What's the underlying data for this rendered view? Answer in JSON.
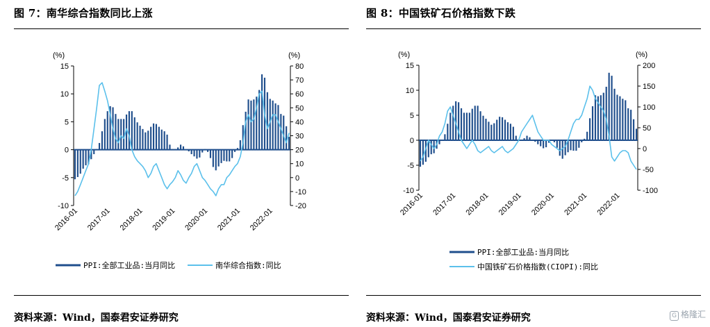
{
  "left": {
    "title": "图 7：南华综合指数同比上涨",
    "source": "资料来源：Wind，国泰君安证券研究",
    "chart_data": {
      "type": "bar+line",
      "left_unit": "(%)",
      "right_unit": "(%)",
      "left_ylim": [
        -10,
        15
      ],
      "left_ticks": [
        "15",
        "10",
        "5",
        "0",
        "-5",
        "-10"
      ],
      "right_ylim": [
        -20,
        80
      ],
      "right_ticks": [
        "80",
        "70",
        "60",
        "50",
        "40",
        "30",
        "20",
        "10",
        "0",
        "-10",
        "-20"
      ],
      "x_tick_labels": [
        "2016-01",
        "2017-01",
        "2018-01",
        "2019-01",
        "2020-01",
        "2021-01",
        "2022-01"
      ],
      "x_range": [
        "2016-01",
        "2022-08"
      ],
      "series": [
        {
          "name": "PPI:全部工业品:当月同比",
          "type": "bar",
          "axis": "left",
          "color": "#1f4e8c",
          "x": [
            "2016-01",
            "2016-02",
            "2016-03",
            "2016-04",
            "2016-05",
            "2016-06",
            "2016-07",
            "2016-08",
            "2016-09",
            "2016-10",
            "2016-11",
            "2016-12",
            "2017-01",
            "2017-02",
            "2017-03",
            "2017-04",
            "2017-05",
            "2017-06",
            "2017-07",
            "2017-08",
            "2017-09",
            "2017-10",
            "2017-11",
            "2017-12",
            "2018-01",
            "2018-02",
            "2018-03",
            "2018-04",
            "2018-05",
            "2018-06",
            "2018-07",
            "2018-08",
            "2018-09",
            "2018-10",
            "2018-11",
            "2018-12",
            "2019-01",
            "2019-02",
            "2019-03",
            "2019-04",
            "2019-05",
            "2019-06",
            "2019-07",
            "2019-08",
            "2019-09",
            "2019-10",
            "2019-11",
            "2019-12",
            "2020-01",
            "2020-02",
            "2020-03",
            "2020-04",
            "2020-05",
            "2020-06",
            "2020-07",
            "2020-08",
            "2020-09",
            "2020-10",
            "2020-11",
            "2020-12",
            "2021-01",
            "2021-02",
            "2021-03",
            "2021-04",
            "2021-05",
            "2021-06",
            "2021-07",
            "2021-08",
            "2021-09",
            "2021-10",
            "2021-11",
            "2021-12",
            "2022-01",
            "2022-02",
            "2022-03",
            "2022-04",
            "2022-05",
            "2022-06",
            "2022-07",
            "2022-08"
          ],
          "values": [
            -5.3,
            -4.9,
            -4.3,
            -3.4,
            -2.8,
            -2.6,
            -1.7,
            -0.8,
            0.1,
            1.2,
            3.3,
            5.5,
            6.9,
            7.8,
            7.6,
            6.4,
            5.5,
            5.5,
            5.5,
            6.3,
            6.9,
            6.9,
            5.8,
            4.9,
            4.3,
            3.7,
            3.1,
            3.4,
            4.1,
            4.7,
            4.6,
            4.1,
            3.6,
            3.3,
            2.7,
            0.9,
            0.1,
            0.1,
            0.4,
            0.9,
            0.6,
            0.0,
            -0.3,
            -0.8,
            -1.2,
            -1.6,
            -1.4,
            -0.5,
            0.1,
            -0.4,
            -1.5,
            -3.1,
            -3.7,
            -3.0,
            -2.4,
            -2.0,
            -2.1,
            -2.1,
            -1.5,
            -0.4,
            0.3,
            1.7,
            4.4,
            6.8,
            9.0,
            8.8,
            9.0,
            9.5,
            10.7,
            13.5,
            12.9,
            10.3,
            9.1,
            8.8,
            8.3,
            8.0,
            6.4,
            6.1,
            4.2,
            2.3
          ]
        },
        {
          "name": "南华综合指数:同比",
          "type": "line",
          "axis": "right",
          "color": "#5bc0eb",
          "x": [
            "2016-01",
            "2016-02",
            "2016-03",
            "2016-04",
            "2016-05",
            "2016-06",
            "2016-07",
            "2016-08",
            "2016-09",
            "2016-10",
            "2016-11",
            "2016-12",
            "2017-01",
            "2017-02",
            "2017-03",
            "2017-04",
            "2017-05",
            "2017-06",
            "2017-07",
            "2017-08",
            "2017-09",
            "2017-10",
            "2017-11",
            "2017-12",
            "2018-01",
            "2018-02",
            "2018-03",
            "2018-04",
            "2018-05",
            "2018-06",
            "2018-07",
            "2018-08",
            "2018-09",
            "2018-10",
            "2018-11",
            "2018-12",
            "2019-01",
            "2019-02",
            "2019-03",
            "2019-04",
            "2019-05",
            "2019-06",
            "2019-07",
            "2019-08",
            "2019-09",
            "2019-10",
            "2019-11",
            "2019-12",
            "2020-01",
            "2020-02",
            "2020-03",
            "2020-04",
            "2020-05",
            "2020-06",
            "2020-07",
            "2020-08",
            "2020-09",
            "2020-10",
            "2020-11",
            "2020-12",
            "2021-01",
            "2021-02",
            "2021-03",
            "2021-04",
            "2021-05",
            "2021-06",
            "2021-07",
            "2021-08",
            "2021-09",
            "2021-10",
            "2021-11",
            "2021-12",
            "2022-01",
            "2022-02",
            "2022-03",
            "2022-04",
            "2022-05",
            "2022-06",
            "2022-07",
            "2022-08"
          ],
          "values": [
            -13,
            -10,
            -5,
            0,
            5,
            10,
            20,
            35,
            50,
            66,
            68,
            62,
            55,
            45,
            35,
            28,
            25,
            30,
            28,
            35,
            30,
            20,
            15,
            12,
            10,
            8,
            5,
            0,
            3,
            8,
            10,
            5,
            0,
            -5,
            -8,
            -5,
            -3,
            0,
            5,
            2,
            -2,
            -4,
            0,
            3,
            8,
            10,
            5,
            0,
            -2,
            -5,
            -8,
            -10,
            -13,
            -8,
            -5,
            -5,
            0,
            2,
            5,
            8,
            10,
            15,
            25,
            40,
            45,
            40,
            42,
            50,
            60,
            62,
            45,
            35,
            40,
            45,
            45,
            40,
            35,
            30,
            25,
            32
          ]
        }
      ]
    }
  },
  "right": {
    "title": "图 8：中国铁矿石价格指数下跌",
    "source": "资料来源：Wind，国泰君安证券研究",
    "chart_data": {
      "type": "bar+line",
      "left_unit": "(%)",
      "right_unit": "(%)",
      "left_ylim": [
        -10,
        15
      ],
      "left_ticks": [
        "15",
        "10",
        "5",
        "0",
        "-5",
        "-10"
      ],
      "right_ylim": [
        -100,
        200
      ],
      "right_ticks": [
        "200",
        "150",
        "100",
        "50",
        "0",
        "-50",
        "-100"
      ],
      "x_tick_labels": [
        "2016-01",
        "2017-01",
        "2018-01",
        "2019-01",
        "2020-01",
        "2021-01",
        "2022-01"
      ],
      "x_range": [
        "2016-01",
        "2022-08"
      ],
      "series": [
        {
          "name": "PPI:全部工业品:当月同比",
          "type": "bar",
          "axis": "left",
          "color": "#1f4e8c",
          "x": [
            "2016-01",
            "2016-02",
            "2016-03",
            "2016-04",
            "2016-05",
            "2016-06",
            "2016-07",
            "2016-08",
            "2016-09",
            "2016-10",
            "2016-11",
            "2016-12",
            "2017-01",
            "2017-02",
            "2017-03",
            "2017-04",
            "2017-05",
            "2017-06",
            "2017-07",
            "2017-08",
            "2017-09",
            "2017-10",
            "2017-11",
            "2017-12",
            "2018-01",
            "2018-02",
            "2018-03",
            "2018-04",
            "2018-05",
            "2018-06",
            "2018-07",
            "2018-08",
            "2018-09",
            "2018-10",
            "2018-11",
            "2018-12",
            "2019-01",
            "2019-02",
            "2019-03",
            "2019-04",
            "2019-05",
            "2019-06",
            "2019-07",
            "2019-08",
            "2019-09",
            "2019-10",
            "2019-11",
            "2019-12",
            "2020-01",
            "2020-02",
            "2020-03",
            "2020-04",
            "2020-05",
            "2020-06",
            "2020-07",
            "2020-08",
            "2020-09",
            "2020-10",
            "2020-11",
            "2020-12",
            "2021-01",
            "2021-02",
            "2021-03",
            "2021-04",
            "2021-05",
            "2021-06",
            "2021-07",
            "2021-08",
            "2021-09",
            "2021-10",
            "2021-11",
            "2021-12",
            "2022-01",
            "2022-02",
            "2022-03",
            "2022-04",
            "2022-05",
            "2022-06",
            "2022-07",
            "2022-08"
          ],
          "values": [
            -5.3,
            -4.9,
            -4.3,
            -3.4,
            -2.8,
            -2.6,
            -1.7,
            -0.8,
            0.1,
            1.2,
            3.3,
            5.5,
            6.9,
            7.8,
            7.6,
            6.4,
            5.5,
            5.5,
            5.5,
            6.3,
            6.9,
            6.9,
            5.8,
            4.9,
            4.3,
            3.7,
            3.1,
            3.4,
            4.1,
            4.7,
            4.6,
            4.1,
            3.6,
            3.3,
            2.7,
            0.9,
            0.1,
            0.1,
            0.4,
            0.9,
            0.6,
            0.0,
            -0.3,
            -0.8,
            -1.2,
            -1.6,
            -1.4,
            -0.5,
            0.1,
            -0.4,
            -1.5,
            -3.1,
            -3.7,
            -3.0,
            -2.4,
            -2.0,
            -2.1,
            -2.1,
            -1.5,
            -0.4,
            0.3,
            1.7,
            4.4,
            6.8,
            9.0,
            8.8,
            9.0,
            9.5,
            10.7,
            13.5,
            12.9,
            10.3,
            9.1,
            8.8,
            8.3,
            8.0,
            6.4,
            6.1,
            4.2,
            2.3
          ]
        },
        {
          "name": "中国铁矿石价格指数(CIOPI):同比",
          "type": "line",
          "axis": "right",
          "color": "#5bc0eb",
          "x": [
            "2016-01",
            "2016-02",
            "2016-03",
            "2016-04",
            "2016-05",
            "2016-06",
            "2016-07",
            "2016-08",
            "2016-09",
            "2016-10",
            "2016-11",
            "2016-12",
            "2017-01",
            "2017-02",
            "2017-03",
            "2017-04",
            "2017-05",
            "2017-06",
            "2017-07",
            "2017-08",
            "2017-09",
            "2017-10",
            "2017-11",
            "2017-12",
            "2018-01",
            "2018-02",
            "2018-03",
            "2018-04",
            "2018-05",
            "2018-06",
            "2018-07",
            "2018-08",
            "2018-09",
            "2018-10",
            "2018-11",
            "2018-12",
            "2019-01",
            "2019-02",
            "2019-03",
            "2019-04",
            "2019-05",
            "2019-06",
            "2019-07",
            "2019-08",
            "2019-09",
            "2019-10",
            "2019-11",
            "2019-12",
            "2020-01",
            "2020-02",
            "2020-03",
            "2020-04",
            "2020-05",
            "2020-06",
            "2020-07",
            "2020-08",
            "2020-09",
            "2020-10",
            "2020-11",
            "2020-12",
            "2021-01",
            "2021-02",
            "2021-03",
            "2021-04",
            "2021-05",
            "2021-06",
            "2021-07",
            "2021-08",
            "2021-09",
            "2021-10",
            "2021-11",
            "2021-12",
            "2022-01",
            "2022-02",
            "2022-03",
            "2022-04",
            "2022-05",
            "2022-06",
            "2022-07",
            "2022-08"
          ],
          "values": [
            -30,
            -20,
            0,
            20,
            10,
            0,
            10,
            30,
            40,
            60,
            90,
            100,
            80,
            60,
            40,
            20,
            10,
            0,
            10,
            20,
            10,
            -5,
            -10,
            -5,
            0,
            5,
            -5,
            -10,
            -5,
            0,
            5,
            -5,
            -10,
            -5,
            0,
            10,
            20,
            40,
            50,
            60,
            70,
            80,
            60,
            40,
            30,
            20,
            20,
            20,
            10,
            5,
            0,
            -5,
            0,
            5,
            20,
            40,
            60,
            70,
            70,
            80,
            100,
            120,
            150,
            140,
            120,
            110,
            100,
            90,
            70,
            30,
            -20,
            -30,
            -20,
            -10,
            -5,
            -5,
            -10,
            -30,
            -40,
            -50
          ]
        }
      ]
    }
  },
  "watermark": {
    "icon_text": "G",
    "text": "格隆汇"
  }
}
